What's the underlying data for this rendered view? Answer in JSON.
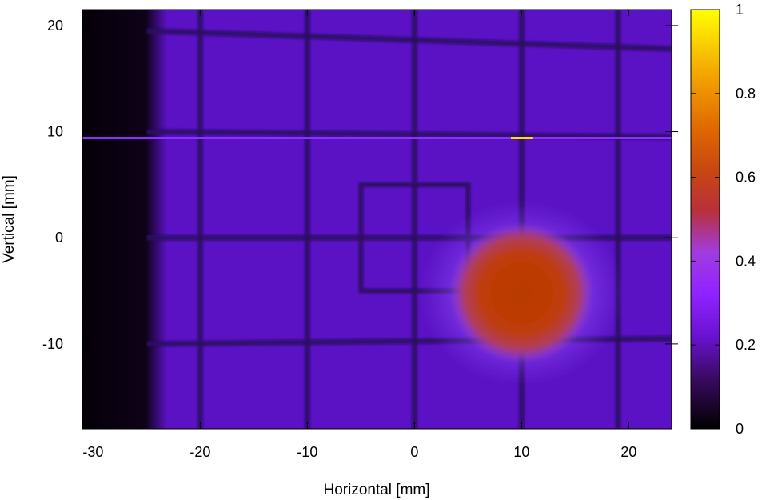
{
  "chart_data": {
    "type": "heatmap",
    "title": "",
    "xlabel": "Horizontal [mm]",
    "ylabel": "Vertical [mm]",
    "xlim": [
      -31,
      24
    ],
    "ylim": [
      -18,
      21.5
    ],
    "x_ticks": [
      -30,
      -20,
      -10,
      0,
      10,
      20
    ],
    "y_ticks": [
      -10,
      0,
      10,
      20
    ],
    "colorbar": {
      "range": [
        0,
        1
      ],
      "ticks": [
        0,
        0.2,
        0.4,
        0.6,
        0.8,
        1
      ],
      "colormap": [
        "#000000",
        "#3a0a60",
        "#6a12d0",
        "#8f22ff",
        "#a03ce0",
        "#c0403a",
        "#d85a10",
        "#f0a000",
        "#ffff00"
      ]
    },
    "grid": false,
    "features": {
      "background_intensity": 0.16,
      "dark_left_region": {
        "x_range": [
          -31,
          -24
        ],
        "intensity": 0.02
      },
      "grid_wires_vertical_x": [
        -20,
        -10,
        0,
        10,
        19
      ],
      "grid_wires_horizontal": [
        {
          "y_left": 19.5,
          "y_right": 17.8
        },
        {
          "y_left": 10.0,
          "y_right": 9.5
        },
        {
          "y_left": 0.0,
          "y_right": 0.0
        },
        {
          "y_left": -10.0,
          "y_right": -9.5
        }
      ],
      "bright_horizontal_line": {
        "y": 9.4,
        "intensity": 0.3,
        "hot_segment_x": [
          9,
          11
        ],
        "hot_intensity": 1.0
      },
      "square_outline": {
        "x": [
          -5,
          5
        ],
        "y": [
          -5,
          5
        ]
      },
      "beam_spot": {
        "center_x": 10,
        "center_y": -5.2,
        "radius_x": 5.5,
        "radius_y": 5.5,
        "peak_intensity": 0.57
      }
    }
  }
}
